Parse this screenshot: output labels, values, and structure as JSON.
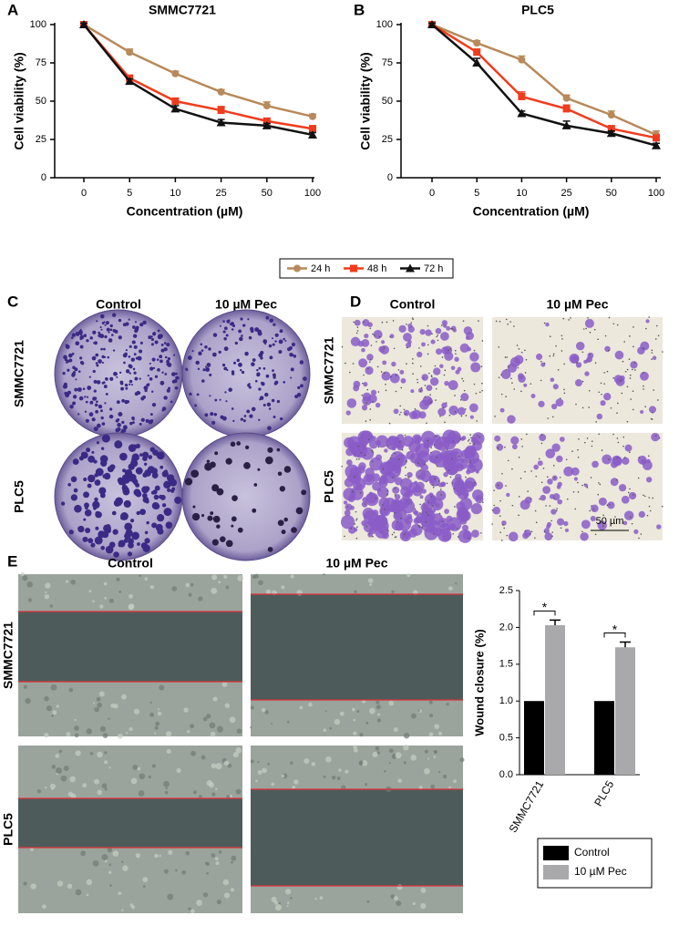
{
  "chart_data": [
    {
      "type": "line",
      "panel": "A",
      "title": "SMMC7721",
      "x_label": "Concentration (µM)",
      "y_label": "Cell viability (%)",
      "categories": [
        "0",
        "5",
        "10",
        "25",
        "50",
        "100"
      ],
      "ylim": [
        0,
        100
      ],
      "yticks": [
        0,
        25,
        50,
        75,
        100
      ],
      "series": [
        {
          "name": "24 h",
          "color": "#b8895a",
          "marker": "circle",
          "values": [
            100,
            82,
            68,
            56,
            47,
            40
          ],
          "errors": [
            1,
            2,
            1.5,
            1.5,
            2.5,
            1.5
          ]
        },
        {
          "name": "48 h",
          "color": "#f03c1e",
          "marker": "square",
          "values": [
            100,
            65,
            50,
            44,
            37,
            32
          ],
          "errors": [
            1,
            2,
            2,
            2.5,
            1.5,
            2
          ]
        },
        {
          "name": "72 h",
          "color": "#111111",
          "marker": "triangle",
          "values": [
            100,
            63,
            45,
            36,
            34,
            28
          ],
          "errors": [
            1,
            1.5,
            2,
            2,
            1.5,
            1.5
          ]
        }
      ]
    },
    {
      "type": "line",
      "panel": "B",
      "title": "PLC5",
      "x_label": "Concentration (µM)",
      "y_label": "Cell viability (%)",
      "categories": [
        "0",
        "5",
        "10",
        "25",
        "50",
        "100"
      ],
      "ylim": [
        0,
        100
      ],
      "yticks": [
        0,
        25,
        50,
        75,
        100
      ],
      "series": [
        {
          "color": "#b8895a",
          "marker": "circle",
          "values": [
            100,
            88,
            77,
            52,
            41,
            28
          ],
          "errors": [
            1,
            1.5,
            2.5,
            2,
            2.5,
            2.5
          ]
        },
        {
          "color": "#f03c1e",
          "marker": "square",
          "values": [
            100,
            82,
            53,
            45,
            32,
            26
          ],
          "errors": [
            1,
            2,
            3,
            2.5,
            2,
            1.5
          ]
        },
        {
          "color": "#111111",
          "marker": "triangle",
          "values": [
            100,
            75,
            42,
            34,
            29,
            21
          ],
          "errors": [
            1,
            3,
            1.5,
            3,
            1.5,
            1.5
          ]
        }
      ]
    },
    {
      "type": "bar",
      "panel": "E",
      "y_label": "Wound closure (%)",
      "categories": [
        "SMMC7721",
        "PLC5"
      ],
      "ylim": [
        0,
        2.5
      ],
      "yticks": [
        {
          "value": 0,
          "label": "0.0"
        },
        {
          "value": 0.5,
          "label": "0.5"
        },
        {
          "value": 1,
          "label": "1.0"
        },
        {
          "value": 1.5,
          "label": "1.5"
        },
        {
          "value": 2,
          "label": "2.0"
        },
        {
          "value": 2.5,
          "label": "2.5"
        }
      ],
      "annotations": [
        "*",
        "*"
      ],
      "series": [
        {
          "name": "Control",
          "color": "#000000",
          "values": [
            1,
            1
          ]
        },
        {
          "name": "10 µM Pec",
          "color": "#a9a9ab",
          "values": [
            2.03,
            1.73
          ],
          "errors": [
            0.07,
            0.07
          ]
        }
      ]
    }
  ],
  "panel_c": {
    "label": "C",
    "columns": [
      "Control",
      "10 µM Pec"
    ],
    "rows": [
      "SMMC7721",
      "PLC5"
    ]
  },
  "panel_d": {
    "label": "D",
    "columns": [
      "Control",
      "10 µM Pec"
    ],
    "rows": [
      "SMMC7721",
      "PLC5"
    ],
    "scale_bar": "50 µm"
  },
  "panel_e": {
    "columns": [
      "Control",
      "10 µM Pec"
    ],
    "rows": [
      "SMMC7721",
      "PLC5"
    ]
  }
}
